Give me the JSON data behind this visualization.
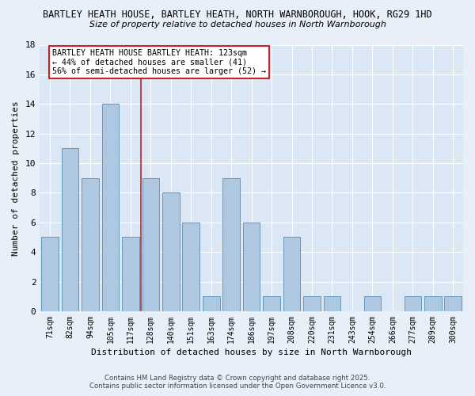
{
  "title_line1": "BARTLEY HEATH HOUSE, BARTLEY HEATH, NORTH WARNBOROUGH, HOOK, RG29 1HD",
  "title_line2": "Size of property relative to detached houses in North Warnborough",
  "xlabel": "Distribution of detached houses by size in North Warnborough",
  "ylabel": "Number of detached properties",
  "categories": [
    "71sqm",
    "82sqm",
    "94sqm",
    "105sqm",
    "117sqm",
    "128sqm",
    "140sqm",
    "151sqm",
    "163sqm",
    "174sqm",
    "186sqm",
    "197sqm",
    "208sqm",
    "220sqm",
    "231sqm",
    "243sqm",
    "254sqm",
    "266sqm",
    "277sqm",
    "289sqm",
    "300sqm"
  ],
  "values": [
    5,
    11,
    9,
    14,
    5,
    9,
    8,
    6,
    1,
    9,
    6,
    1,
    5,
    1,
    1,
    0,
    1,
    0,
    1,
    1,
    1
  ],
  "bar_color": "#adc8e0",
  "bar_edge_color": "#6699bb",
  "vertical_line_x": 4.5,
  "vertical_line_color": "#cc2222",
  "ylim": [
    0,
    18
  ],
  "yticks": [
    0,
    2,
    4,
    6,
    8,
    10,
    12,
    14,
    16,
    18
  ],
  "annotation_text": "BARTLEY HEATH HOUSE BARTLEY HEATH: 123sqm\n← 44% of detached houses are smaller (41)\n56% of semi-detached houses are larger (52) →",
  "annotation_box_color": "#ffffff",
  "annotation_box_edge_color": "#cc2222",
  "footer_line1": "Contains HM Land Registry data © Crown copyright and database right 2025.",
  "footer_line2": "Contains public sector information licensed under the Open Government Licence v3.0.",
  "background_color": "#e8eff8",
  "plot_bg_color": "#dce7f5",
  "grid_color": "#ffffff"
}
